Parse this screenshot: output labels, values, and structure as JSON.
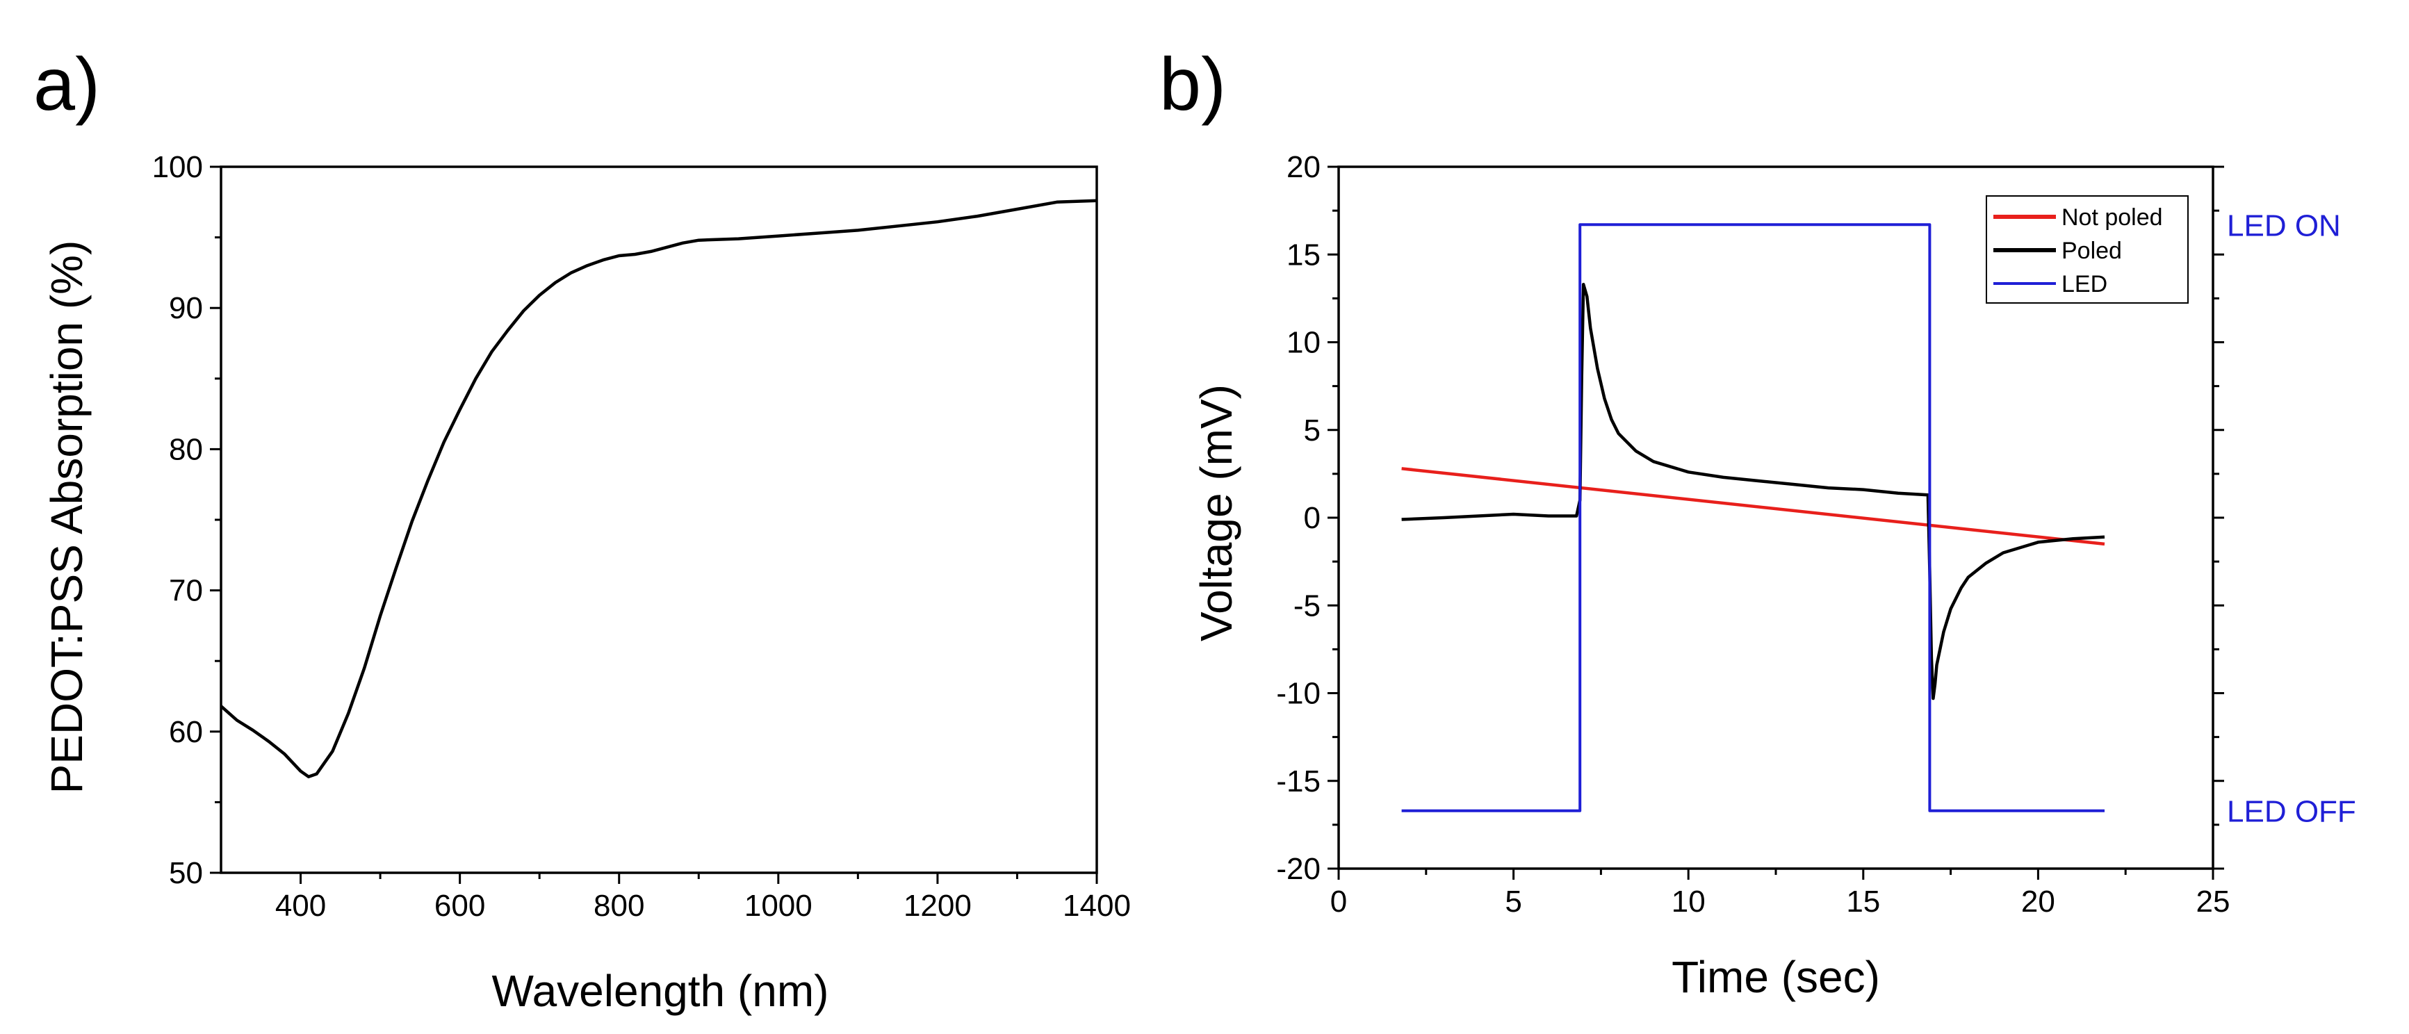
{
  "chart_data": [
    {
      "type": "line",
      "panel_label": "a)",
      "title": "",
      "xlabel": "Wavelength (nm)",
      "ylabel": "PEDOT:PSS Absorption (%)",
      "xlim": [
        300,
        1400
      ],
      "ylim": [
        50,
        100
      ],
      "xticks": [
        400,
        600,
        800,
        1000,
        1200,
        1400
      ],
      "yticks": [
        50,
        60,
        70,
        80,
        90,
        100
      ],
      "xtick_labels": [
        "400",
        "600",
        "800",
        "1000",
        "1200",
        "1400"
      ],
      "ytick_labels": [
        "50",
        "60",
        "70",
        "80",
        "90",
        "100"
      ],
      "grid": false,
      "series": [
        {
          "name": "PEDOT:PSS absorption",
          "color": "#000000",
          "x": [
            300,
            320,
            340,
            360,
            380,
            400,
            410,
            420,
            440,
            460,
            480,
            500,
            520,
            540,
            560,
            580,
            600,
            620,
            640,
            660,
            680,
            700,
            720,
            740,
            760,
            780,
            800,
            820,
            840,
            860,
            880,
            900,
            950,
            1000,
            1050,
            1100,
            1150,
            1200,
            1250,
            1300,
            1350,
            1400
          ],
          "y": [
            61.8,
            60.8,
            60.1,
            59.3,
            58.4,
            57.2,
            56.8,
            57.0,
            58.6,
            61.3,
            64.5,
            68.2,
            71.6,
            74.9,
            77.8,
            80.5,
            82.8,
            85.0,
            86.9,
            88.4,
            89.8,
            90.9,
            91.8,
            92.5,
            93.0,
            93.4,
            93.7,
            93.8,
            94.0,
            94.3,
            94.6,
            94.8,
            94.9,
            95.1,
            95.3,
            95.5,
            95.8,
            96.1,
            96.5,
            97.0,
            97.5,
            97.6
          ]
        }
      ]
    },
    {
      "type": "line",
      "panel_label": "b)",
      "title": "",
      "xlabel": "Time (sec)",
      "ylabel": "Voltage (mV)",
      "xlim": [
        0,
        25
      ],
      "ylim": [
        -20,
        20
      ],
      "xticks": [
        0,
        5,
        10,
        15,
        20,
        25
      ],
      "yticks": [
        -20,
        -15,
        -10,
        -5,
        0,
        5,
        10,
        15,
        20
      ],
      "xtick_labels": [
        "0",
        "5",
        "10",
        "15",
        "20",
        "25"
      ],
      "ytick_labels": [
        "-20",
        "-15",
        "-10",
        "-5",
        "0",
        "5",
        "10",
        "15",
        "20"
      ],
      "grid": false,
      "legend_position": "top-right",
      "right_axis_labels": {
        "on": "LED ON",
        "off": "LED OFF",
        "on_value": 16.7,
        "off_value": -16.7
      },
      "series": [
        {
          "name": "Not poled",
          "color": "#e8201c",
          "x": [
            1.8,
            21.9
          ],
          "y": [
            2.8,
            -1.5
          ]
        },
        {
          "name": "Poled",
          "color": "#000000",
          "x": [
            1.8,
            3,
            4,
            5,
            6,
            6.8,
            6.9,
            6.95,
            7.0,
            7.1,
            7.2,
            7.4,
            7.6,
            7.8,
            8.0,
            8.5,
            9,
            10,
            11,
            12,
            13,
            14,
            15,
            16,
            16.85,
            16.9,
            16.95,
            17.0,
            17.05,
            17.1,
            17.3,
            17.5,
            17.8,
            18.0,
            18.5,
            19,
            20,
            21,
            21.9
          ],
          "y": [
            -0.1,
            0.0,
            0.1,
            0.2,
            0.1,
            0.1,
            1.0,
            8.0,
            13.3,
            12.6,
            10.8,
            8.5,
            6.8,
            5.6,
            4.8,
            3.8,
            3.2,
            2.6,
            2.3,
            2.1,
            1.9,
            1.7,
            1.6,
            1.4,
            1.3,
            -3.0,
            -8.0,
            -10.3,
            -9.5,
            -8.4,
            -6.5,
            -5.2,
            -4.0,
            -3.4,
            -2.6,
            -2.0,
            -1.4,
            -1.2,
            -1.1
          ]
        },
        {
          "name": "LED",
          "color": "#1f1fd6",
          "x": [
            1.8,
            6.9,
            6.9,
            16.9,
            16.9,
            21.9
          ],
          "y": [
            -16.7,
            -16.7,
            16.7,
            16.7,
            -16.7,
            -16.7
          ]
        }
      ]
    }
  ]
}
